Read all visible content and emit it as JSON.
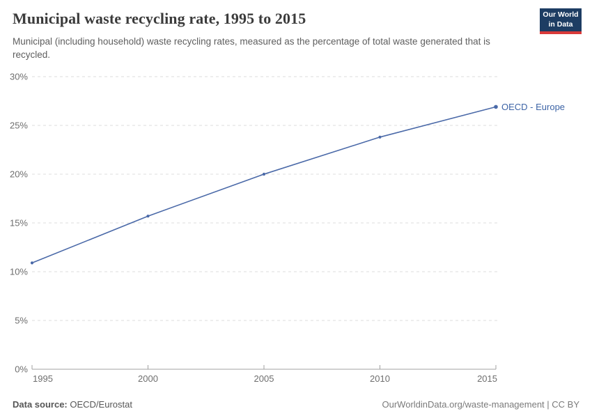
{
  "header": {
    "title": "Municipal waste recycling rate, 1995 to 2015",
    "subtitle": "Municipal (including household) waste recycling rates, measured as the percentage of total waste generated that is recycled.",
    "logo": {
      "line1": "Our World",
      "line2": "in Data",
      "bg_color": "#1d3d63",
      "accent_color": "#d93a3a"
    }
  },
  "chart_data": {
    "type": "line",
    "title": "Municipal waste recycling rate, 1995 to 2015",
    "x": [
      1995,
      2000,
      2005,
      2010,
      2015
    ],
    "series": [
      {
        "name": "OECD - Europe",
        "values": [
          10.9,
          15.7,
          20.0,
          23.8,
          26.9
        ],
        "color": "#4a69a8",
        "label_color": "#3d64a6"
      }
    ],
    "xlabel": "",
    "ylabel": "",
    "xlim": [
      1995,
      2015
    ],
    "ylim": [
      0,
      30
    ],
    "xticks": [
      1995,
      2000,
      2005,
      2010,
      2015
    ],
    "yticks": [
      0,
      5,
      10,
      15,
      20,
      25,
      30
    ],
    "ytick_suffix": "%",
    "grid": "horizontal-dashed",
    "legend_position": "end-of-line-label",
    "grid_color": "#dcdcdc",
    "axis_color": "#a0a0a0",
    "tick_label_color": "#6e6e6e"
  },
  "footer": {
    "source_label": "Data source:",
    "source_value": "OECD/Eurostat",
    "right_text": "OurWorldinData.org/waste-management | CC BY"
  }
}
